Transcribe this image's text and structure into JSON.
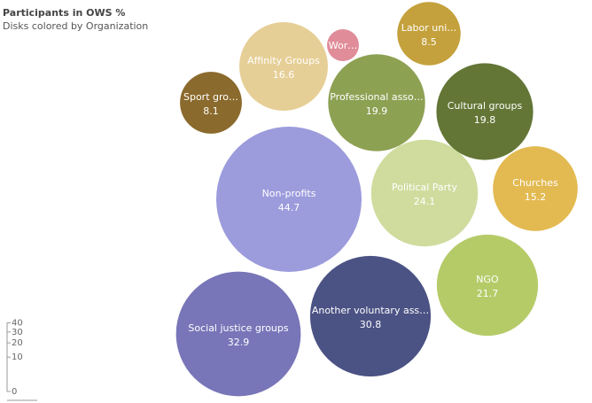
{
  "chart_data": {
    "type": "bubble",
    "title": "Participants in OWS  %",
    "subtitle": "Disks colored by Organization",
    "size_legend": {
      "ticks": [
        0,
        10,
        20,
        30,
        40
      ]
    },
    "bubbles": [
      {
        "label": "Non-profits",
        "value": 44.7,
        "color": "#9c9bdc"
      },
      {
        "label": "Social justice groups",
        "value": 32.9,
        "color": "#7876b8"
      },
      {
        "label": "Another voluntary ass…",
        "value": 30.8,
        "color": "#4b5284"
      },
      {
        "label": "Political Party",
        "value": 24.1,
        "color": "#cfdc9e"
      },
      {
        "label": "NGO",
        "value": 21.7,
        "color": "#b5cb68"
      },
      {
        "label": "Professional asso…",
        "value": 19.9,
        "color": "#8da153"
      },
      {
        "label": "Cultural groups",
        "value": 19.8,
        "color": "#637636"
      },
      {
        "label": "Affinity Groups",
        "value": 16.6,
        "color": "#e6cf96"
      },
      {
        "label": "Churches",
        "value": 15.2,
        "color": "#e3ba52"
      },
      {
        "label": "Labor uni…",
        "value": 8.5,
        "color": "#c4a13c"
      },
      {
        "label": "Sport gro…",
        "value": 8.1,
        "color": "#8b6a2d"
      },
      {
        "label": "Wor…",
        "value": null,
        "color": "#e08c99"
      }
    ]
  }
}
